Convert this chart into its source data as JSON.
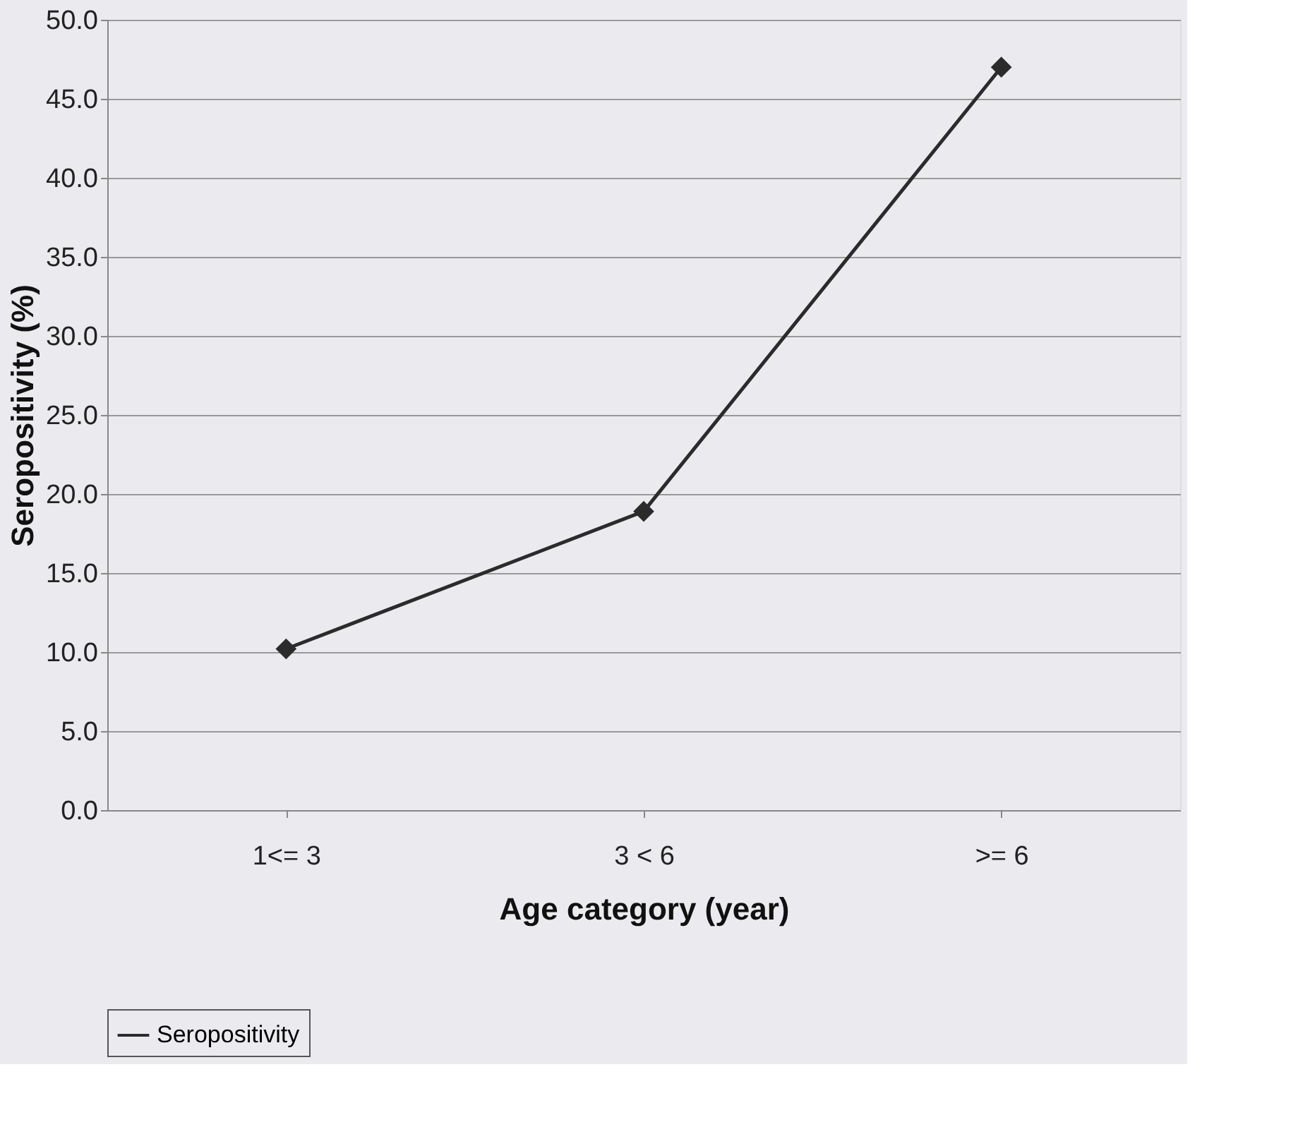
{
  "chart_data": {
    "type": "line",
    "xlabel": "Age category (year)",
    "ylabel": "Seropositivity (%)",
    "categories": [
      "1<= 3",
      "3 < 6",
      ">= 6"
    ],
    "series": [
      {
        "name": "Seropositivity",
        "color": "#2b2b2b",
        "values": [
          10.2,
          18.9,
          47.0
        ]
      }
    ],
    "ylim": [
      0,
      50
    ],
    "yticks": [
      {
        "value": 0,
        "label": "0.0"
      },
      {
        "value": 5,
        "label": "5.0"
      },
      {
        "value": 10,
        "label": "10.0"
      },
      {
        "value": 15,
        "label": "15.0"
      },
      {
        "value": 20,
        "label": "20.0"
      },
      {
        "value": 25,
        "label": "25.0"
      },
      {
        "value": 30,
        "label": "30.0"
      },
      {
        "value": 35,
        "label": "35.0"
      },
      {
        "value": 40,
        "label": "40.0"
      },
      {
        "value": 45,
        "label": "45.0"
      },
      {
        "value": 50,
        "label": "50.0"
      }
    ],
    "grid": "y",
    "legend": "bottom",
    "marker": "diamond",
    "line_style": "solid"
  }
}
